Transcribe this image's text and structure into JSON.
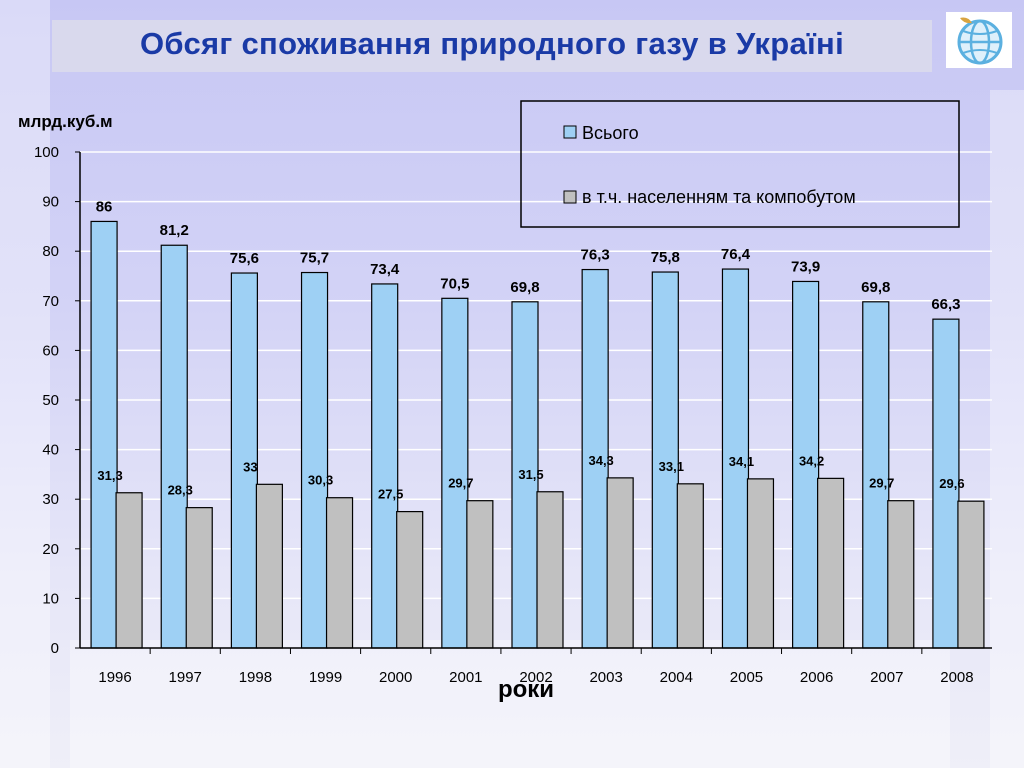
{
  "page": {
    "title": "Обсяг споживання природного газу в Україні"
  },
  "chart_data": {
    "type": "bar",
    "title": "Обсяг споживання природного газу в Україні",
    "ylabel": "млрд.куб.м",
    "xlabel": "роки",
    "ylim": [
      0,
      100
    ],
    "yticks": [
      "0",
      "10",
      "20",
      "30",
      "40",
      "50",
      "60",
      "70",
      "80",
      "90",
      "100"
    ],
    "grid": true,
    "legend_position": "top-right",
    "categories": [
      "1996",
      "1997",
      "1998",
      "1999",
      "2000",
      "2001",
      "2002",
      "2003",
      "2004",
      "2005",
      "2006",
      "2007",
      "2008"
    ],
    "series": [
      {
        "name": "Всього",
        "color": "#9ed0f4",
        "values": [
          86,
          81.2,
          75.6,
          75.7,
          73.4,
          70.5,
          69.8,
          76.3,
          75.8,
          76.4,
          73.9,
          69.8,
          66.3
        ],
        "labels": [
          "86",
          "81,2",
          "75,6",
          "75,7",
          "73,4",
          "70,5",
          "69,8",
          "76,3",
          "75,8",
          "76,4",
          "73,9",
          "69,8",
          "66,3"
        ]
      },
      {
        "name": "в т.ч. населенням та компобутом",
        "color": "#c0c0c0",
        "values": [
          31.3,
          28.3,
          33,
          30.3,
          27.5,
          29.7,
          31.5,
          34.3,
          33.1,
          34.1,
          34.2,
          29.7,
          29.6
        ],
        "labels": [
          "31,3",
          "28,3",
          "33",
          "30,3",
          "27,5",
          "29,7",
          "31,5",
          "34,3",
          "33,1",
          "34,1",
          "34,2",
          "29,7",
          "29,6"
        ]
      }
    ]
  }
}
